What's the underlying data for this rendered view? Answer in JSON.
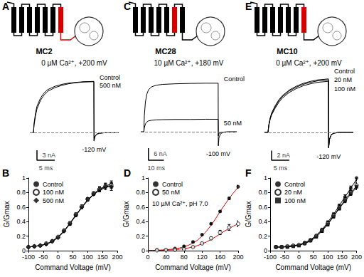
{
  "chart_data": [
    {
      "type": "line",
      "panel": "A",
      "construct": "MC2",
      "helix_colors": [
        "#000000",
        "#000000",
        "#000000",
        "#000000",
        "#000000",
        "#000000",
        "#d40000"
      ],
      "linker_color": "#d40000",
      "title": "0 µM Ca²⁺, +200 mV",
      "tail_label": "-120 mV",
      "baseline": 0,
      "scale_bars": {
        "x": 5,
        "x_label": "5 ms",
        "y": 3,
        "y_label": "3 nA"
      },
      "tick_labels": false,
      "xlim": [
        -1,
        24
      ],
      "ylim": [
        -10,
        19
      ],
      "x": [
        -1,
        0,
        0.2,
        0.6,
        1,
        2,
        3,
        4,
        6,
        8,
        10,
        12,
        14,
        17,
        17.05,
        17.3,
        17.8,
        18.5,
        20,
        24
      ],
      "series": [
        {
          "name": "Control",
          "color": "#000000",
          "values": [
            0,
            0,
            3,
            6,
            8,
            10.5,
            12,
            13,
            14,
            14.6,
            15,
            15.2,
            15.4,
            15.5,
            -2.5,
            -1.2,
            -0.5,
            -0.2,
            0,
            0
          ]
        },
        {
          "name": "500 nM",
          "color": "#000000",
          "values": [
            0,
            0,
            2.5,
            5.2,
            7.2,
            9.8,
            11.4,
            12.5,
            13.6,
            14.3,
            14.8,
            15.1,
            15.3,
            15.4,
            -2.3,
            -1.1,
            -0.4,
            -0.1,
            0,
            0
          ]
        }
      ]
    },
    {
      "type": "scatter",
      "panel": "B",
      "x_label": "Command Voltage (mV)",
      "y_label": "G/Gmax",
      "xlim": [
        -100,
        200
      ],
      "xticks": [
        -100,
        -50,
        0,
        50,
        100,
        150,
        200
      ],
      "ylim": [
        0,
        1
      ],
      "yticks": [
        0,
        0.2,
        0.4,
        0.6,
        0.8,
        1
      ],
      "grid": false,
      "legend": "top-left",
      "x": [
        -100,
        -80,
        -60,
        -40,
        -20,
        0,
        20,
        40,
        60,
        80,
        100,
        120,
        140,
        160,
        180
      ],
      "series": [
        {
          "name": "Control",
          "color": "#000000",
          "marker": "circle",
          "values": [
            0.05,
            0.06,
            0.07,
            0.09,
            0.13,
            0.19,
            0.27,
            0.37,
            0.49,
            0.6,
            0.7,
            0.79,
            0.85,
            0.9,
            0.92
          ],
          "errors": [
            0.01,
            0.01,
            0.01,
            0.01,
            0.01,
            0.01,
            0.01,
            0.02,
            0.02,
            0.02,
            0.02,
            0.02,
            0.03,
            0.03,
            0.04
          ],
          "fit": {
            "color": "#000000",
            "x": [
              -100,
              -80,
              -60,
              -40,
              -20,
              0,
              20,
              40,
              60,
              80,
              100,
              120,
              140,
              160,
              180
            ],
            "values": [
              0.05,
              0.06,
              0.07,
              0.09,
              0.13,
              0.19,
              0.27,
              0.37,
              0.49,
              0.6,
              0.7,
              0.78,
              0.85,
              0.89,
              0.92
            ]
          }
        },
        {
          "name": "100 nM",
          "color": "#000000",
          "marker": "open_circle",
          "values": [
            0.05,
            0.06,
            0.07,
            0.1,
            0.13,
            0.19,
            0.28,
            0.38,
            0.5,
            0.61,
            0.71,
            0.79,
            0.85,
            0.89,
            0.9
          ],
          "errors": [
            0.01,
            0.01,
            0.01,
            0.01,
            0.01,
            0.01,
            0.01,
            0.02,
            0.02,
            0.02,
            0.02,
            0.02,
            0.03,
            0.03,
            0.04
          ],
          "fit": {
            "color": "#000000",
            "x": [
              -100,
              -80,
              -60,
              -40,
              -20,
              0,
              20,
              40,
              60,
              80,
              100,
              120,
              140,
              160,
              180
            ],
            "values": [
              0.05,
              0.06,
              0.07,
              0.09,
              0.13,
              0.19,
              0.27,
              0.38,
              0.49,
              0.6,
              0.7,
              0.78,
              0.84,
              0.88,
              0.9
            ]
          }
        },
        {
          "name": "500 nM",
          "color": "#000000",
          "marker": "diamond",
          "values": [
            0.05,
            0.06,
            0.07,
            0.09,
            0.13,
            0.18,
            0.27,
            0.37,
            0.49,
            0.6,
            0.71,
            0.78,
            0.84,
            0.88,
            0.88
          ],
          "errors": [
            0.01,
            0.01,
            0.01,
            0.01,
            0.01,
            0.01,
            0.01,
            0.02,
            0.02,
            0.02,
            0.02,
            0.02,
            0.03,
            0.04,
            0.05
          ],
          "fit": {
            "color": "#000000",
            "x": [
              -100,
              -80,
              -60,
              -40,
              -20,
              0,
              20,
              40,
              60,
              80,
              100,
              120,
              140,
              160,
              180
            ],
            "values": [
              0.05,
              0.06,
              0.07,
              0.09,
              0.12,
              0.18,
              0.26,
              0.37,
              0.48,
              0.59,
              0.69,
              0.77,
              0.83,
              0.87,
              0.89
            ]
          }
        }
      ]
    },
    {
      "type": "line",
      "panel": "C",
      "construct": "MC28",
      "helix_colors": [
        "#000000",
        "#000000",
        "#000000",
        "#000000",
        "#000000",
        "#d40000",
        "#000000"
      ],
      "linker_color": "#000000",
      "title": "10 µM Ca²⁺, +180 mV",
      "tail_label": "-100 mV",
      "baseline": 0,
      "scale_bars": {
        "x": 10,
        "x_label": "10 ms",
        "y": 6,
        "y_label": "6 nA"
      },
      "tick_labels": false,
      "xlim": [
        -2,
        60
      ],
      "ylim": [
        -17,
        31
      ],
      "x": [
        -2,
        0,
        0.3,
        1,
        2,
        3,
        5,
        8,
        12,
        20,
        30,
        40,
        48,
        48.1,
        48.5,
        49.5,
        51,
        54,
        60
      ],
      "series": [
        {
          "name": "Control",
          "color": "#000000",
          "values": [
            0,
            0,
            8,
            15,
            19,
            21,
            22.5,
            23.3,
            23.7,
            24,
            24.2,
            24.3,
            24.3,
            -7,
            -3,
            -1,
            -0.3,
            0,
            0
          ]
        },
        {
          "name": "50 nM",
          "color": "#000000",
          "values": [
            0,
            0,
            2,
            4,
            5,
            5.5,
            5.8,
            6,
            6.1,
            6.2,
            6.2,
            6.3,
            6.3,
            -2,
            -0.8,
            -0.3,
            -0.1,
            0,
            0
          ]
        }
      ]
    },
    {
      "type": "scatter",
      "panel": "D",
      "x_label": "Command Voltage (mV)",
      "y_label": "G/Gmax",
      "annotation": "10 µM Ca²⁺, pH 7.0",
      "xlim": [
        0,
        200
      ],
      "xticks": [
        0,
        40,
        80,
        120,
        160,
        200
      ],
      "ylim": [
        0,
        1
      ],
      "yticks": [
        0,
        0.2,
        0.4,
        0.6,
        0.8,
        1
      ],
      "grid": false,
      "legend": "top-left",
      "x": [
        20,
        40,
        60,
        80,
        100,
        120,
        140,
        160,
        180,
        200
      ],
      "series": [
        {
          "name": "Control",
          "color": "#000000",
          "marker": "circle",
          "values": [
            0.01,
            0.01,
            0.03,
            0.06,
            0.12,
            0.22,
            0.37,
            0.54,
            0.72,
            0.88
          ],
          "errors": [
            0.005,
            0.005,
            0.005,
            0.01,
            0.01,
            0.01,
            0.01,
            0.01,
            0.015,
            0.02
          ],
          "fit": {
            "color": "#d40000",
            "x": [
              0,
              10,
              20,
              30,
              40,
              50,
              60,
              70,
              80,
              90,
              100,
              110,
              120,
              130,
              140,
              150,
              160,
              170,
              180,
              190,
              200
            ],
            "values": [
              0.003,
              0.004,
              0.006,
              0.009,
              0.013,
              0.018,
              0.026,
              0.037,
              0.053,
              0.075,
              0.105,
              0.145,
              0.2,
              0.27,
              0.35,
              0.44,
              0.54,
              0.63,
              0.72,
              0.8,
              0.87
            ]
          }
        },
        {
          "name": "50 nM",
          "color": "#000000",
          "marker": "open_circle",
          "values": [
            0.005,
            0.01,
            0.01,
            0.02,
            0.05,
            0.1,
            0.17,
            0.25,
            0.32,
            0.37
          ],
          "errors": [
            0.005,
            0.005,
            0.005,
            0.005,
            0.01,
            0.01,
            0.02,
            0.03,
            0.04,
            0.04
          ],
          "fit": {
            "color": "#d40000",
            "x": [
              0,
              10,
              20,
              30,
              40,
              50,
              60,
              70,
              80,
              90,
              100,
              110,
              120,
              130,
              140,
              150,
              160,
              170,
              180,
              190,
              200
            ],
            "values": [
              0.002,
              0.003,
              0.004,
              0.005,
              0.007,
              0.01,
              0.014,
              0.02,
              0.028,
              0.038,
              0.052,
              0.07,
              0.094,
              0.12,
              0.155,
              0.19,
              0.23,
              0.27,
              0.305,
              0.34,
              0.37
            ]
          }
        }
      ]
    },
    {
      "type": "line",
      "panel": "E",
      "construct": "MC10",
      "helix_colors": [
        "#000000",
        "#000000",
        "#000000",
        "#000000",
        "#000000",
        "#000000",
        "#d40000"
      ],
      "linker_color": "#000000",
      "title": "0 µM Ca²⁺, +200 mV",
      "tail_label": "-120 mV",
      "baseline": 0,
      "scale_bars": {
        "x": 5,
        "x_label": "5 ms",
        "y": 2,
        "y_label": "2 nA"
      },
      "tick_labels": false,
      "xlim": [
        -1,
        24
      ],
      "ylim": [
        -7,
        13
      ],
      "x": [
        -1,
        0,
        0.2,
        0.6,
        1,
        2,
        3,
        4,
        6,
        8,
        10,
        12,
        14,
        17,
        17.05,
        17.3,
        17.8,
        18.5,
        20,
        24
      ],
      "series": [
        {
          "name": "Control",
          "color": "#000000",
          "values": [
            0,
            0,
            1.5,
            3,
            4,
            5.5,
            6.7,
            7.6,
            8.8,
            9.6,
            10.2,
            10.6,
            10.9,
            11.1,
            -3.3,
            -1.5,
            -0.5,
            -0.2,
            0,
            0
          ]
        },
        {
          "name": "20 nM",
          "color": "#000000",
          "values": [
            0,
            0,
            1.4,
            2.8,
            3.8,
            5.3,
            6.5,
            7.4,
            8.6,
            9.4,
            10,
            10.4,
            10.7,
            10.9,
            -3.2,
            -1.4,
            -0.5,
            -0.2,
            0,
            0
          ]
        },
        {
          "name": "100 nM",
          "color": "#000000",
          "values": [
            0,
            0,
            1.3,
            2.7,
            3.6,
            5,
            6.2,
            7.1,
            8.3,
            9.1,
            9.7,
            10.1,
            10.4,
            10.6,
            -3.1,
            -1.4,
            -0.5,
            -0.2,
            0,
            0
          ]
        }
      ]
    },
    {
      "type": "scatter",
      "panel": "F",
      "x_label": "Command Voltage (mV)",
      "y_label": "G/Gmax",
      "xlim": [
        -100,
        200
      ],
      "xticks": [
        -100,
        -50,
        0,
        50,
        100,
        150,
        200
      ],
      "ylim": [
        0,
        1
      ],
      "yticks": [
        0,
        0.2,
        0.4,
        0.6,
        0.8,
        1
      ],
      "grid": false,
      "legend": "top-left",
      "x": [
        -80,
        -60,
        -40,
        -20,
        0,
        20,
        40,
        60,
        80,
        100,
        120,
        140,
        160,
        180,
        200
      ],
      "series": [
        {
          "name": "Control",
          "color": "#000000",
          "marker": "circle",
          "values": [
            0.05,
            0.05,
            0.06,
            0.07,
            0.08,
            0.11,
            0.15,
            0.21,
            0.29,
            0.39,
            0.5,
            0.62,
            0.74,
            0.86,
            1.0
          ],
          "errors": [
            0.01,
            0.01,
            0.01,
            0.01,
            0.01,
            0.01,
            0.01,
            0.01,
            0.02,
            0.02,
            0.02,
            0.02,
            0.03,
            0.03,
            0.04
          ],
          "fit": {
            "color": "#000000",
            "x": [
              -80,
              -60,
              -40,
              -20,
              0,
              20,
              40,
              60,
              80,
              100,
              120,
              140,
              160,
              180,
              200
            ],
            "values": [
              0.05,
              0.05,
              0.06,
              0.07,
              0.08,
              0.11,
              0.15,
              0.21,
              0.29,
              0.39,
              0.5,
              0.62,
              0.74,
              0.86,
              0.98
            ]
          }
        },
        {
          "name": "20 nM",
          "color": "#000000",
          "marker": "open_circle",
          "values": [
            0.05,
            0.05,
            0.06,
            0.07,
            0.08,
            0.1,
            0.14,
            0.2,
            0.28,
            0.37,
            0.48,
            0.59,
            0.7,
            0.8,
            0.9
          ],
          "errors": [
            0.01,
            0.01,
            0.01,
            0.01,
            0.01,
            0.01,
            0.01,
            0.01,
            0.02,
            0.02,
            0.02,
            0.02,
            0.03,
            0.03,
            0.04
          ],
          "fit": {
            "color": "#000000",
            "x": [
              -80,
              -60,
              -40,
              -20,
              0,
              20,
              40,
              60,
              80,
              100,
              120,
              140,
              160,
              180,
              200
            ],
            "values": [
              0.05,
              0.05,
              0.06,
              0.07,
              0.08,
              0.1,
              0.14,
              0.2,
              0.28,
              0.37,
              0.48,
              0.59,
              0.7,
              0.8,
              0.89
            ]
          }
        },
        {
          "name": "100 nM",
          "color": "#000000",
          "marker": "square",
          "values": [
            0.05,
            0.05,
            0.05,
            0.06,
            0.07,
            0.1,
            0.14,
            0.19,
            0.27,
            0.36,
            0.47,
            0.58,
            0.69,
            0.79,
            0.88
          ],
          "errors": [
            0.01,
            0.01,
            0.01,
            0.01,
            0.01,
            0.01,
            0.01,
            0.01,
            0.02,
            0.02,
            0.02,
            0.02,
            0.03,
            0.03,
            0.04
          ],
          "fit": {
            "color": "#000000",
            "x": [
              -80,
              -60,
              -40,
              -20,
              0,
              20,
              40,
              60,
              80,
              100,
              120,
              140,
              160,
              180,
              200
            ],
            "values": [
              0.05,
              0.05,
              0.05,
              0.06,
              0.07,
              0.1,
              0.13,
              0.19,
              0.27,
              0.36,
              0.47,
              0.58,
              0.68,
              0.78,
              0.87
            ]
          }
        }
      ]
    }
  ]
}
